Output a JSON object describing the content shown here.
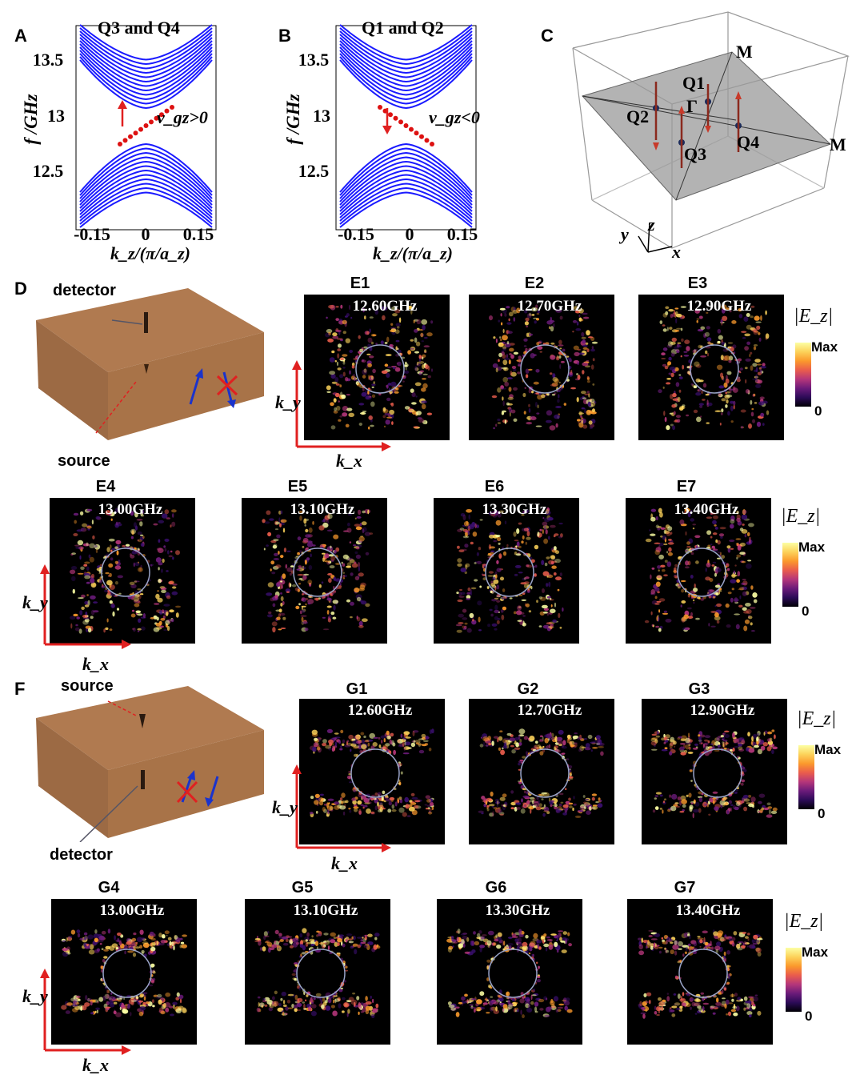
{
  "panel_A": {
    "letter": "A",
    "title": "Q3 and Q4",
    "ylabel": "f /GHz",
    "xlabel": "k_z/(π/a_z)",
    "yticks": [
      "13.5",
      "13",
      "12.5"
    ],
    "xticks": [
      "-0.15",
      "0",
      "0.15"
    ],
    "annotation": "v_gz>0"
  },
  "panel_B": {
    "letter": "B",
    "title": "Q1 and Q2",
    "ylabel": "f /GHz",
    "xlabel": "k_z/(π/a_z)",
    "yticks": [
      "13.5",
      "13",
      "12.5"
    ],
    "xticks": [
      "-0.15",
      "0",
      "0.15"
    ],
    "annotation": "v_gz<0"
  },
  "panel_C": {
    "letter": "C",
    "points": [
      "Q1",
      "Q2",
      "Q3",
      "Q4",
      "Γ"
    ],
    "corners": [
      "M",
      "M"
    ],
    "axes": [
      "x",
      "y",
      "z"
    ]
  },
  "panel_D": {
    "letter": "D",
    "detector": "detector",
    "source": "source"
  },
  "panel_F": {
    "letter": "F",
    "detector": "detector",
    "source": "source"
  },
  "maps_E": [
    {
      "label": "E1",
      "freq": "12.60GHz"
    },
    {
      "label": "E2",
      "freq": "12.70GHz"
    },
    {
      "label": "E3",
      "freq": "12.90GHz"
    },
    {
      "label": "E4",
      "freq": "13.00GHz"
    },
    {
      "label": "E5",
      "freq": "13.10GHz"
    },
    {
      "label": "E6",
      "freq": "13.30GHz"
    },
    {
      "label": "E7",
      "freq": "13.40GHz"
    }
  ],
  "maps_G": [
    {
      "label": "G1",
      "freq": "12.60GHz"
    },
    {
      "label": "G2",
      "freq": "12.70GHz"
    },
    {
      "label": "G3",
      "freq": "12.90GHz"
    },
    {
      "label": "G4",
      "freq": "13.00GHz"
    },
    {
      "label": "G5",
      "freq": "13.10GHz"
    },
    {
      "label": "G6",
      "freq": "13.30GHz"
    },
    {
      "label": "G7",
      "freq": "13.40GHz"
    }
  ],
  "colorbar": {
    "title": "|E_z|",
    "max": "Max",
    "min": "0"
  },
  "kaxes": {
    "ky": "k_y",
    "kx": "k_x"
  },
  "colors": {
    "band": "#1a1aff",
    "edge": "#d11",
    "arrow": "#e02020",
    "box": "#b07a50"
  }
}
